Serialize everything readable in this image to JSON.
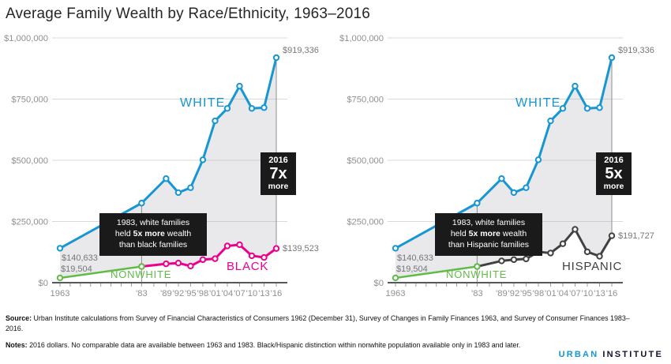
{
  "title": "Average Family Wealth by Race/Ethnicity, 1963–2016",
  "chart_data": [
    {
      "type": "line",
      "title": "White vs. black average family wealth",
      "x": [
        1963,
        1983,
        1989,
        1992,
        1995,
        1998,
        2001,
        2004,
        2007,
        2010,
        2013,
        2016
      ],
      "x_tick_labels": [
        "1963",
        "'83",
        "'89",
        "'92",
        "'95",
        "'98",
        "'01",
        "'04",
        "'07",
        "'10",
        "'13",
        "'16"
      ],
      "y_axis": {
        "range": [
          0,
          1000000
        ],
        "ticks": [
          {
            "value": 0,
            "label": "$0"
          },
          {
            "value": 250000,
            "label": "$250,000"
          },
          {
            "value": 500000,
            "label": "$500,000"
          },
          {
            "value": 750000,
            "label": "$750,000"
          },
          {
            "value": 1000000,
            "label": "$1,000,000"
          }
        ]
      },
      "series": [
        {
          "name": "WHITE",
          "color": "#1696d2",
          "x": [
            1963,
            1983,
            1989,
            1992,
            1995,
            1998,
            2001,
            2004,
            2007,
            2010,
            2013,
            2016
          ],
          "values": [
            140633,
            325000,
            425000,
            368000,
            388000,
            502000,
            661000,
            712000,
            803000,
            712000,
            715000,
            919336
          ]
        },
        {
          "name": "NONWHITE",
          "color": "#61bb46",
          "x": [
            1963,
            1983
          ],
          "values": [
            19504,
            66000
          ]
        },
        {
          "name": "BLACK",
          "color": "#ec008b",
          "x": [
            1983,
            1989,
            1992,
            1995,
            1998,
            2001,
            2004,
            2007,
            2010,
            2013,
            2016
          ],
          "values": [
            66000,
            77000,
            80000,
            68000,
            94000,
            98000,
            150000,
            155000,
            110000,
            103000,
            139523
          ]
        }
      ],
      "point_labels": {
        "white_start": "$140,633",
        "nonwhite_start": "$19,504",
        "white_end": "$919,336",
        "minority_end": "$139,523"
      },
      "annotations": {
        "box1983": {
          "line1": "1983, white families",
          "line2_pre": "held ",
          "line2_bold": "5x more",
          "line2_post": " wealth",
          "line3": "than black families"
        },
        "box2016": {
          "year": "2016",
          "ratio": "7x",
          "caption": "more"
        }
      },
      "reference_years": [
        1983,
        2016
      ],
      "grid": true,
      "legend_position": "inline-labels"
    },
    {
      "type": "line",
      "title": "White vs. Hispanic average family wealth",
      "x": [
        1963,
        1983,
        1989,
        1992,
        1995,
        1998,
        2001,
        2004,
        2007,
        2010,
        2013,
        2016
      ],
      "x_tick_labels": [
        "1963",
        "'83",
        "'89",
        "'92",
        "'95",
        "'98",
        "'01",
        "'04",
        "'07",
        "'10",
        "'13",
        "'16"
      ],
      "y_axis": {
        "range": [
          0,
          1000000
        ],
        "ticks": [
          {
            "value": 0,
            "label": "$0"
          },
          {
            "value": 250000,
            "label": "$250,000"
          },
          {
            "value": 500000,
            "label": "$500,000"
          },
          {
            "value": 750000,
            "label": "$750,000"
          },
          {
            "value": 1000000,
            "label": "$1,000,000"
          }
        ]
      },
      "series": [
        {
          "name": "WHITE",
          "color": "#1696d2",
          "x": [
            1963,
            1983,
            1989,
            1992,
            1995,
            1998,
            2001,
            2004,
            2007,
            2010,
            2013,
            2016
          ],
          "values": [
            140633,
            325000,
            425000,
            368000,
            388000,
            502000,
            661000,
            712000,
            803000,
            712000,
            715000,
            919336
          ]
        },
        {
          "name": "NONWHITE",
          "color": "#61bb46",
          "x": [
            1963,
            1983
          ],
          "values": [
            19504,
            66000
          ]
        },
        {
          "name": "HISPANIC",
          "color": "#414042",
          "x": [
            1983,
            1989,
            1992,
            1995,
            1998,
            2001,
            2004,
            2007,
            2010,
            2013,
            2016
          ],
          "values": [
            66000,
            89000,
            94000,
            97000,
            126000,
            121000,
            159000,
            218000,
            126000,
            108000,
            191727
          ]
        }
      ],
      "point_labels": {
        "white_start": "$140,633",
        "nonwhite_start": "$19,504",
        "white_end": "$919,336",
        "minority_end": "$191,727"
      },
      "annotations": {
        "box1983": {
          "line1": "1983, white families",
          "line2_pre": "held ",
          "line2_bold": "5x more",
          "line2_post": " wealth",
          "line3": "than Hispanic families"
        },
        "box2016": {
          "year": "2016",
          "ratio": "5x",
          "caption": "more"
        }
      },
      "reference_years": [
        1983,
        2016
      ],
      "grid": true,
      "legend_position": "inline-labels"
    }
  ],
  "footer": {
    "source_label": "Source:",
    "source_text": " Urban Institute calculations from Survey of Financial Characteristics of Consumers 1962 (December 31), Survey of Changes in Family Finances 1963, and Survey of Consumer Finances 1983–2016.",
    "notes_label": "Notes:",
    "notes_text": " 2016 dollars. No comparable data are available between 1963 and 1983. Black/Hispanic distinction within nonwhite population available only in 1983 and later.",
    "logo_urban": "URBAN",
    "logo_institute": "INSTITUTE"
  }
}
